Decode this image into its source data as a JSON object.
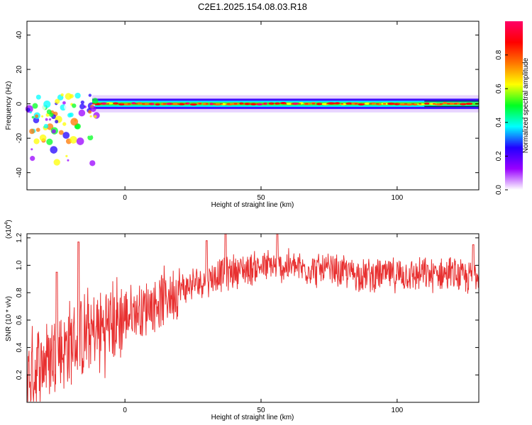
{
  "title": "C2E1.2025.154.08.03.R18",
  "chart_data": [
    {
      "type": "heatmap",
      "xlabel": "Height of straight line (km)",
      "ylabel": "Frequency (Hz)",
      "xlim": [
        -36,
        130
      ],
      "ylim": [
        -50,
        48
      ],
      "xticks": [
        0,
        50,
        100
      ],
      "yticks": [
        -40,
        -20,
        0,
        20,
        40
      ],
      "colorbar": {
        "label": "Normalized spectral amplitude",
        "range": [
          0.0,
          1.0
        ],
        "ticks": [
          0.0,
          0.2,
          0.4,
          0.6,
          0.8
        ],
        "tick_labels": [
          "0.0",
          "0.2",
          "0.4",
          "0.6",
          "0.8"
        ],
        "colors": [
          "#ffffff",
          "#9900ff",
          "#2200ff",
          "#00ffff",
          "#00ff22",
          "#ffff00",
          "#ff7700",
          "#ff0000",
          "#ff0066"
        ]
      },
      "features": {
        "band_center_hz": 0,
        "band_halfwidth_hz": 3,
        "scatter_region_km": [
          -36,
          -10
        ],
        "scatter_freq_range_hz": [
          -36,
          6
        ]
      }
    },
    {
      "type": "line",
      "xlabel": "Height of straight line (km)",
      "ylabel": "SNR (10 * v/v)",
      "y_multiplier_label": "(x10",
      "y_multiplier_exp": "4",
      "y_multiplier_close": ")",
      "xlim": [
        -36,
        130
      ],
      "ylim": [
        0.0,
        1.23
      ],
      "xticks": [
        0,
        50,
        100
      ],
      "yticks": [
        0.2,
        0.4,
        0.6,
        0.8,
        1.0,
        1.2
      ],
      "color": "#e83030",
      "trend_x": [
        -36,
        -30,
        -20,
        -10,
        0,
        10,
        20,
        30,
        40,
        50,
        60,
        70,
        80,
        90,
        100,
        110,
        120,
        125,
        130
      ],
      "trend_y": [
        0.18,
        0.3,
        0.42,
        0.52,
        0.62,
        0.72,
        0.82,
        0.9,
        0.96,
        0.99,
        0.99,
        0.97,
        0.95,
        0.93,
        0.93,
        0.93,
        0.94,
        0.9,
        0.95
      ],
      "peaks": [
        {
          "x": -17,
          "y": 1.17
        },
        {
          "x": -25,
          "y": 0.95
        },
        {
          "x": 30,
          "y": 1.18
        },
        {
          "x": 37,
          "y": 1.23
        },
        {
          "x": 56,
          "y": 1.23
        },
        {
          "x": 128,
          "y": 1.15
        }
      ]
    }
  ]
}
